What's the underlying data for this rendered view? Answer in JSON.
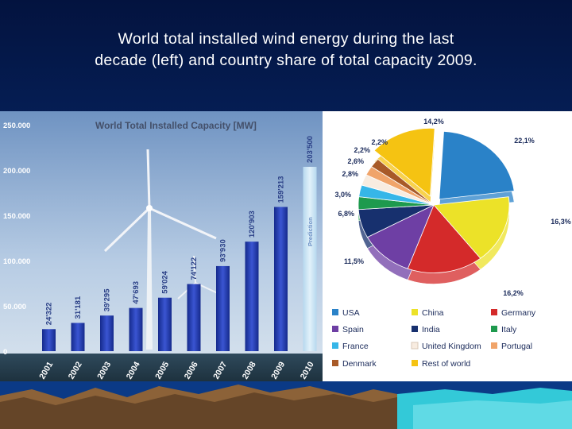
{
  "slide": {
    "title_line1": "World total installed wind energy during the last",
    "title_line2": "decade (left) and country share of total capacity 2009."
  },
  "colors": {
    "background": "#08296a",
    "bar": "#2640b8",
    "prediction_bar": "#c8e4f4"
  },
  "chart_data": [
    {
      "type": "bar",
      "title": "World Total Installed Capacity [MW]",
      "categories": [
        "2001",
        "2002",
        "2003",
        "2004",
        "2005",
        "2006",
        "2007",
        "2008",
        "2009",
        "2010"
      ],
      "values": [
        24322,
        31181,
        39295,
        47693,
        59024,
        74122,
        93930,
        120903,
        159213,
        203500
      ],
      "value_labels": [
        "24'322",
        "31'181",
        "39'295",
        "47'693",
        "59'024",
        "74'122",
        "93'930",
        "120'903",
        "159'213",
        "203'500"
      ],
      "prediction_label": "Prediction",
      "ylim": [
        0,
        250000
      ],
      "yticks": [
        0,
        50000,
        100000,
        150000,
        200000,
        250000
      ],
      "ytick_labels": [
        "0",
        "50.000",
        "100.000",
        "150.000",
        "200.000",
        "250.000"
      ],
      "grid": false
    },
    {
      "type": "pie",
      "labels": [
        "USA",
        "China",
        "Germany",
        "Spain",
        "India",
        "Italy",
        "France",
        "United Kingdom",
        "Portugal",
        "Denmark",
        "Rest of world"
      ],
      "values": [
        22.1,
        16.3,
        16.2,
        11.5,
        6.8,
        3.0,
        2.8,
        2.6,
        2.2,
        2.2,
        14.2
      ],
      "value_labels": [
        "22,1%",
        "16,3%",
        "16,2%",
        "11,5%",
        "6,8%",
        "3,0%",
        "2,8%",
        "2,6%",
        "2,2%",
        "2,2%",
        "14,2%"
      ],
      "colors": [
        "#2a82c8",
        "#ece228",
        "#d42a2a",
        "#6e3fa4",
        "#17306e",
        "#1e9a4e",
        "#36b6e8",
        "#f8ece0",
        "#f0a46a",
        "#a85a28",
        "#f5c312"
      ],
      "legend_position": "bottom"
    }
  ]
}
